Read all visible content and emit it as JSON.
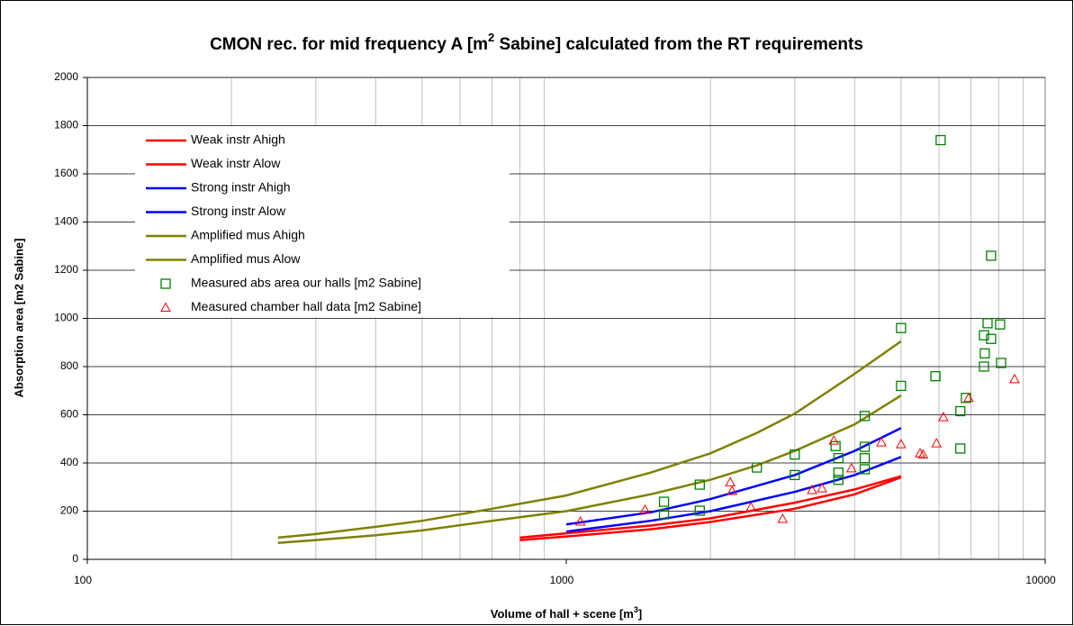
{
  "chart_data": {
    "type": "line",
    "title": [
      "CMON rec. for mid frequency A [m",
      "2",
      " Sabine] calculated from the RT requirements"
    ],
    "x_label": [
      "Volume of hall + scene [m",
      "3",
      "]"
    ],
    "y_label": "Absorption area [m2 Sabine]",
    "xscale": "log",
    "xlim": [
      100,
      10000
    ],
    "xticks": [
      100,
      1000,
      10000
    ],
    "ylim": [
      0,
      2000
    ],
    "yticks": [
      0,
      200,
      400,
      600,
      800,
      1000,
      1200,
      1400,
      1600,
      1800,
      2000
    ],
    "grid": true,
    "legend": "upper left",
    "series": [
      {
        "name": "Weak instr Ahigh",
        "color": "#ff0000",
        "x": [
          800,
          1000,
          1500,
          2000,
          3000,
          4000,
          5000
        ],
        "values": [
          90,
          108,
          140,
          170,
          235,
          290,
          345
        ]
      },
      {
        "name": "Weak instr Alow",
        "color": "#ff0000",
        "x": [
          800,
          1000,
          1500,
          2000,
          3000,
          4000,
          5000
        ],
        "values": [
          80,
          95,
          125,
          155,
          210,
          270,
          340
        ]
      },
      {
        "name": "Strong instr Ahigh",
        "color": "#0000ff",
        "x": [
          1000,
          1500,
          2000,
          3000,
          4000,
          5000
        ],
        "values": [
          145,
          195,
          250,
          350,
          450,
          545
        ]
      },
      {
        "name": "Strong instr Alow",
        "color": "#0000ff",
        "x": [
          1000,
          1500,
          2000,
          3000,
          4000,
          5000
        ],
        "values": [
          115,
          160,
          200,
          280,
          350,
          425
        ]
      },
      {
        "name": "Amplified mus Ahigh",
        "color": "#808000",
        "x": [
          250,
          300,
          400,
          500,
          700,
          1000,
          1500,
          2000,
          2500,
          3000,
          4000,
          5000
        ],
        "values": [
          90,
          105,
          135,
          160,
          210,
          265,
          360,
          440,
          525,
          605,
          770,
          905
        ]
      },
      {
        "name": "Amplified mus Alow",
        "color": "#808000",
        "x": [
          250,
          300,
          400,
          500,
          700,
          1000,
          1500,
          2000,
          2500,
          3000,
          4000,
          5000
        ],
        "values": [
          68,
          80,
          100,
          120,
          160,
          200,
          270,
          330,
          390,
          450,
          560,
          680
        ]
      },
      {
        "name": "Measured abs area our halls [m2 Sabine]",
        "color": "#008000",
        "marker": "square",
        "x": [
          6050,
          7710,
          5000,
          5000,
          5900,
          7580,
          8050,
          7450,
          7710,
          7480,
          7450,
          8090,
          6830,
          6650,
          6650,
          4200,
          4200,
          4200,
          4200,
          3650,
          3700,
          3700,
          3700,
          3000,
          3000,
          2500,
          1900,
          1900,
          1600,
          1600
        ],
        "values": [
          1740,
          1260,
          960,
          720,
          760,
          980,
          975,
          930,
          915,
          855,
          800,
          815,
          670,
          615,
          460,
          595,
          467,
          420,
          374,
          470,
          420,
          360,
          330,
          435,
          350,
          381,
          310,
          202,
          239,
          187
        ]
      },
      {
        "name": "Measured chamber hall data [m2 Sabine]",
        "color": "#ff0000",
        "marker": "triangle",
        "x": [
          8630,
          6920,
          6130,
          5930,
          5480,
          5560,
          5000,
          4550,
          3940,
          3620,
          3260,
          3420,
          2830,
          2430,
          2200,
          2220,
          1460,
          1070
        ],
        "values": [
          748,
          670,
          590,
          482,
          440,
          435,
          478,
          486,
          378,
          493,
          288,
          295,
          168,
          217,
          320,
          284,
          206,
          157
        ]
      }
    ]
  }
}
